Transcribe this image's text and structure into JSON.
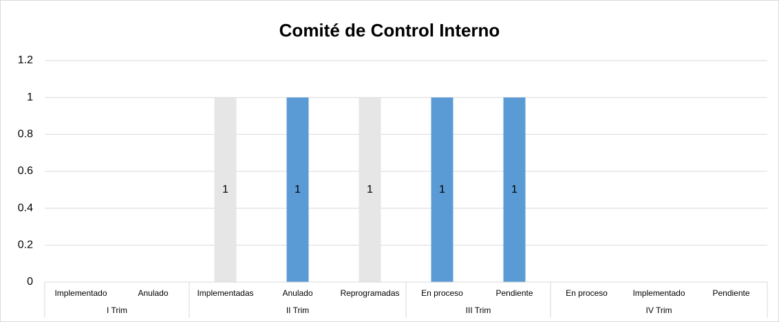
{
  "chart_data": {
    "type": "bar",
    "title": "Comité de Control Interno",
    "groups": [
      {
        "name": "I Trim",
        "categories": [
          "Implementado",
          "Anulado"
        ]
      },
      {
        "name": "II Trim",
        "categories": [
          "Implementadas",
          "Anulado",
          "Reprogramadas"
        ]
      },
      {
        "name": "III Trim",
        "categories": [
          "En proceso",
          "Pendiente"
        ]
      },
      {
        "name": "IV Trim",
        "categories": [
          "En proceso",
          "Implementado",
          "Pendiente"
        ]
      }
    ],
    "values": [
      null,
      null,
      1,
      1,
      1,
      1,
      1,
      null,
      null,
      null
    ],
    "colors": [
      null,
      null,
      "#e7e6e6",
      "#5b9bd5",
      "#e7e6e6",
      "#5b9bd5",
      "#5b9bd5",
      null,
      null,
      null
    ],
    "ylim": [
      0,
      1.2
    ],
    "yticks": [
      0,
      0.2,
      0.4,
      0.6,
      0.8,
      1,
      1.2
    ],
    "grid": true,
    "data_labels": true
  }
}
